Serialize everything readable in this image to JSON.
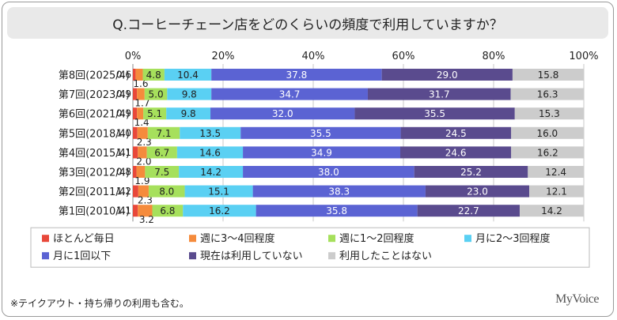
{
  "title": "Q.コーヒーチェーン店をどのくらいの頻度で利用していますか？",
  "footnote": "※テイクアウト・持ち帰りの利用も含む。",
  "logo": "MyVoice",
  "chart_data": {
    "type": "bar",
    "orientation": "horizontal",
    "stacked": "percent",
    "xlim": [
      0,
      100
    ],
    "x_ticks": [
      "0%",
      "20%",
      "40%",
      "60%",
      "80%",
      "100%"
    ],
    "grid": true,
    "legend_position": "bottom",
    "categories": [
      "第8回(2025/4)",
      "第7回(2023/4)",
      "第6回(2021/4)",
      "第5回(2018/4)",
      "第4回(2015/4)",
      "第3回(2012/4)",
      "第2回(2011/4)",
      "第1回(2010/4)"
    ],
    "series": [
      {
        "name": "ほとんど毎日",
        "color": "#e8483a",
        "values": [
          0.6,
          0.9,
          0.9,
          1.0,
          1.1,
          0.8,
          1.2,
          1.1
        ]
      },
      {
        "name": "週に3～4回程度",
        "color": "#f58b3c",
        "values": [
          1.6,
          1.7,
          1.4,
          2.3,
          2.0,
          1.9,
          2.3,
          3.2
        ]
      },
      {
        "name": "週に1～2回程度",
        "color": "#a6e05c",
        "values": [
          4.8,
          5.0,
          5.1,
          7.1,
          6.7,
          7.5,
          8.0,
          6.8
        ]
      },
      {
        "name": "月に2～3回程度",
        "color": "#5ad0f3",
        "values": [
          10.4,
          9.8,
          9.8,
          13.5,
          14.6,
          14.2,
          15.1,
          16.2
        ]
      },
      {
        "name": "月に1回以下",
        "color": "#5b63d3",
        "values": [
          37.8,
          34.7,
          32.0,
          35.5,
          34.9,
          38.0,
          38.3,
          35.8
        ]
      },
      {
        "name": "現在は利用していない",
        "color": "#5a4b8e",
        "values": [
          29.0,
          31.7,
          35.5,
          24.5,
          24.6,
          25.2,
          23.0,
          22.7
        ]
      },
      {
        "name": "利用したことはない",
        "color": "#cccccc",
        "values": [
          15.8,
          16.3,
          15.3,
          16.0,
          16.2,
          12.4,
          12.1,
          14.2
        ]
      }
    ]
  }
}
